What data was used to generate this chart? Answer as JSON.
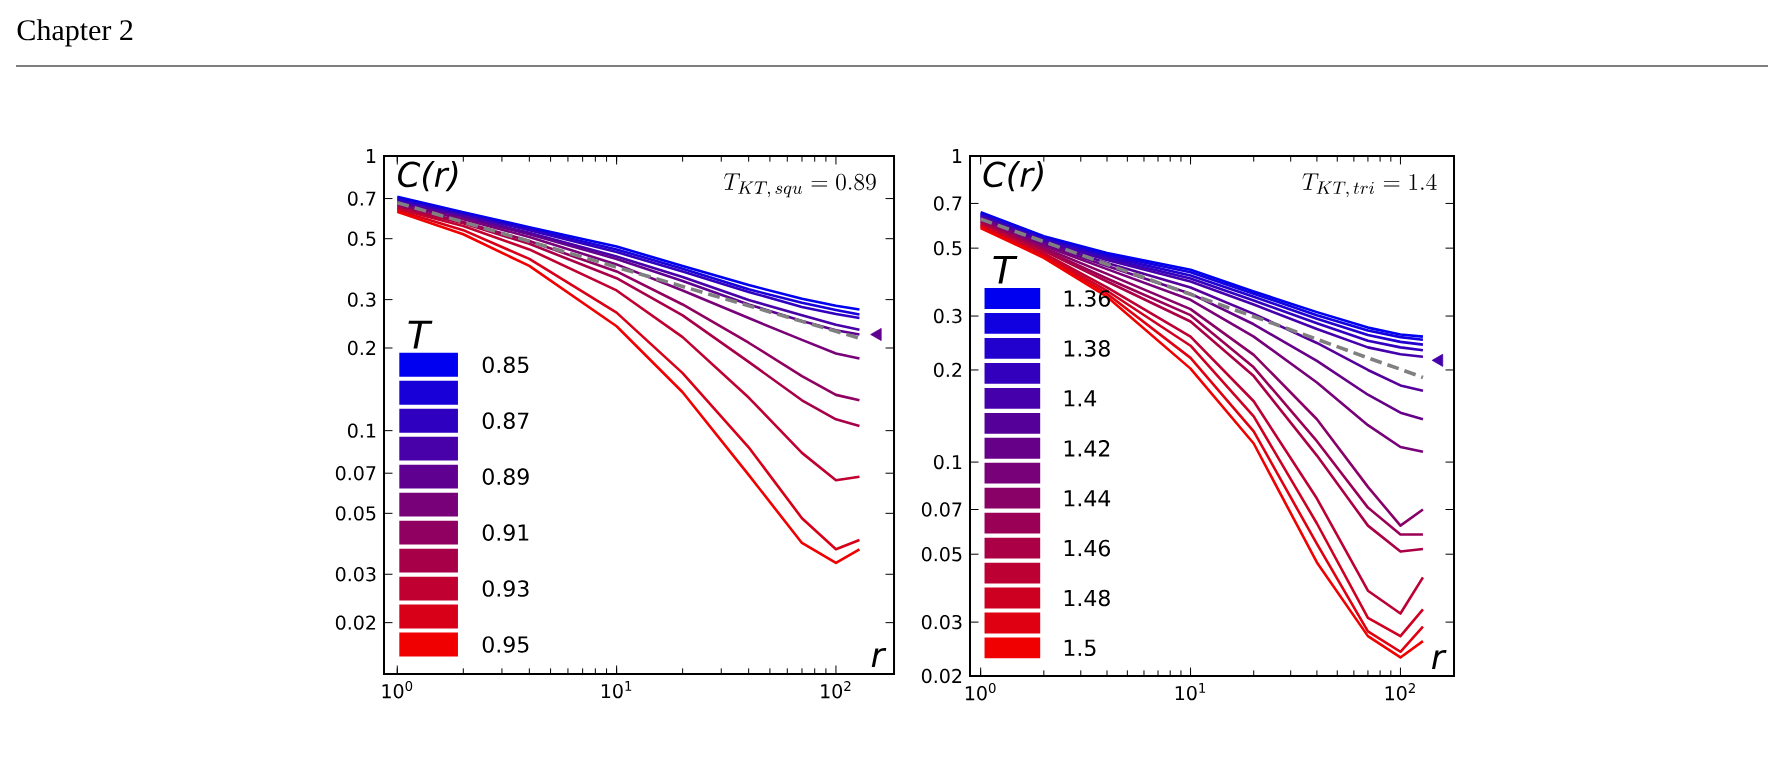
{
  "chart_data": [
    {
      "type": "line",
      "title": "T_{KT,\\,squ} = 0.89",
      "xlabel": "r",
      "ylabel": "C(r)",
      "legend_title": "T",
      "legend": "bottom left",
      "log": "xy",
      "annotations": [
        "Chapter 2"
      ],
      "x": [
        1,
        2,
        4,
        10,
        20,
        40,
        70,
        100,
        128
      ],
      "xlim": [
        0.87,
        184
      ],
      "ylim": [
        0.013,
        1
      ],
      "xticks": [
        {
          "value": 1,
          "label": "10$^{0}$"
        },
        {
          "value": 10,
          "label": "10$^{1}$"
        },
        {
          "value": 100,
          "label": "10$^{2}$"
        }
      ],
      "yticks": [
        0.02,
        0.03,
        0.05,
        0.07,
        0.1,
        0.2,
        0.3,
        0.5,
        0.7,
        1
      ],
      "series": [
        {
          "name": "0.85",
          "color": "#0000f0",
          "values": [
            0.71,
            0.624,
            0.55,
            0.468,
            0.398,
            0.339,
            0.302,
            0.285,
            0.276
          ]
        },
        {
          "color": "#1800d8",
          "values": [
            0.7,
            0.617,
            0.543,
            0.457,
            0.389,
            0.327,
            0.292,
            0.275,
            0.265
          ]
        },
        {
          "name": "0.87",
          "color": "#3000c0",
          "values": [
            0.69,
            0.61,
            0.537,
            0.447,
            0.38,
            0.32,
            0.282,
            0.266,
            0.257
          ]
        },
        {
          "color": "#4800a8",
          "values": [
            0.68,
            0.603,
            0.525,
            0.431,
            0.363,
            0.299,
            0.263,
            0.243,
            0.233
          ]
        },
        {
          "name": "0.89",
          "color": "#600090",
          "values": [
            0.67,
            0.596,
            0.519,
            0.422,
            0.351,
            0.288,
            0.251,
            0.232,
            0.224
          ]
        },
        {
          "color": "#780078",
          "values": [
            0.667,
            0.589,
            0.507,
            0.403,
            0.324,
            0.257,
            0.214,
            0.191,
            0.183
          ]
        },
        {
          "name": "0.91",
          "color": "#900060",
          "values": [
            0.658,
            0.575,
            0.49,
            0.38,
            0.288,
            0.209,
            0.158,
            0.135,
            0.129
          ]
        },
        {
          "color": "#a80048",
          "values": [
            0.65,
            0.569,
            0.479,
            0.359,
            0.263,
            0.178,
            0.129,
            0.11,
            0.104
          ]
        },
        {
          "name": "0.93",
          "color": "#c00030",
          "values": [
            0.643,
            0.556,
            0.457,
            0.324,
            0.219,
            0.132,
            0.083,
            0.066,
            0.068
          ]
        },
        {
          "color": "#d80018",
          "values": [
            0.634,
            0.537,
            0.422,
            0.269,
            0.162,
            0.087,
            0.048,
            0.037,
            0.04
          ]
        },
        {
          "name": "0.95",
          "color": "#f00000",
          "values": [
            0.627,
            0.519,
            0.398,
            0.24,
            0.138,
            0.069,
            0.039,
            0.033,
            0.037
          ]
        },
        {
          "color": "#808080",
          "line_style": "dashed",
          "values": [
            0.676,
            0.575,
            0.489,
            0.394,
            0.335,
            0.285,
            0.25,
            0.23,
            0.217
          ]
        },
        {
          "type": "scatter",
          "marker": "triangle",
          "color": "#600090",
          "x": [
            155
          ],
          "values": [
            0.224
          ]
        }
      ]
    },
    {
      "type": "line",
      "title": "T_{KT,\\,tri} = 1.4",
      "xlabel": "r",
      "ylabel": "C(r)",
      "legend_title": "T",
      "legend": "bottom left",
      "log": "xy",
      "x": [
        1,
        2,
        4,
        10,
        20,
        40,
        70,
        100,
        128
      ],
      "xlim": [
        0.89,
        180
      ],
      "ylim": [
        0.02,
        1
      ],
      "xticks": [
        {
          "value": 1,
          "label": "10$^{0}$"
        },
        {
          "value": 10,
          "label": "10$^{1}$"
        },
        {
          "value": 100,
          "label": "10$^{2}$"
        }
      ],
      "yticks": [
        0.02,
        0.03,
        0.05,
        0.07,
        0.1,
        0.2,
        0.3,
        0.5,
        0.7,
        1
      ],
      "series": [
        {
          "name": "1.36",
          "color": "#0000f0",
          "values": [
            0.655,
            0.547,
            0.482,
            0.425,
            0.361,
            0.309,
            0.275,
            0.261,
            0.257
          ]
        },
        {
          "color": "#1100df",
          "values": [
            0.649,
            0.542,
            0.476,
            0.417,
            0.355,
            0.302,
            0.269,
            0.256,
            0.251
          ]
        },
        {
          "name": "1.38",
          "color": "#2200ce",
          "values": [
            0.644,
            0.537,
            0.47,
            0.407,
            0.347,
            0.294,
            0.26,
            0.247,
            0.242
          ]
        },
        {
          "color": "#3300bd",
          "values": [
            0.638,
            0.532,
            0.463,
            0.398,
            0.337,
            0.284,
            0.249,
            0.237,
            0.232
          ]
        },
        {
          "name": "1.4",
          "color": "#4500ab",
          "values": [
            0.634,
            0.527,
            0.457,
            0.389,
            0.327,
            0.272,
            0.237,
            0.225,
            0.221
          ]
        },
        {
          "color": "#56009a",
          "values": [
            0.628,
            0.521,
            0.447,
            0.372,
            0.305,
            0.245,
            0.2,
            0.178,
            0.171
          ]
        },
        {
          "name": "1.42",
          "color": "#670089",
          "values": [
            0.624,
            0.515,
            0.437,
            0.355,
            0.282,
            0.214,
            0.166,
            0.145,
            0.138
          ]
        },
        {
          "color": "#780078",
          "values": [
            0.618,
            0.509,
            0.427,
            0.339,
            0.257,
            0.182,
            0.132,
            0.112,
            0.108
          ]
        },
        {
          "name": "1.44",
          "color": "#890067",
          "values": [
            0.612,
            0.501,
            0.412,
            0.316,
            0.224,
            0.138,
            0.083,
            0.062,
            0.07
          ]
        },
        {
          "color": "#9a0056",
          "values": [
            0.608,
            0.495,
            0.398,
            0.302,
            0.204,
            0.117,
            0.071,
            0.058,
            0.058
          ]
        },
        {
          "name": "1.46",
          "color": "#ab0045",
          "values": [
            0.603,
            0.49,
            0.389,
            0.288,
            0.191,
            0.105,
            0.062,
            0.051,
            0.052
          ]
        },
        {
          "color": "#bd0033",
          "values": [
            0.597,
            0.481,
            0.372,
            0.257,
            0.158,
            0.076,
            0.038,
            0.032,
            0.042
          ]
        },
        {
          "name": "1.48",
          "color": "#ce0022",
          "values": [
            0.593,
            0.475,
            0.363,
            0.24,
            0.141,
            0.063,
            0.031,
            0.027,
            0.033
          ]
        },
        {
          "color": "#df0011",
          "values": [
            0.587,
            0.47,
            0.355,
            0.219,
            0.126,
            0.054,
            0.028,
            0.024,
            0.029
          ]
        },
        {
          "name": "1.5",
          "color": "#f00000",
          "values": [
            0.582,
            0.465,
            0.347,
            0.202,
            0.115,
            0.047,
            0.027,
            0.023,
            0.026
          ]
        },
        {
          "color": "#808080",
          "line_style": "dashed",
          "values": [
            0.622,
            0.525,
            0.443,
            0.353,
            0.299,
            0.252,
            0.219,
            0.201,
            0.189
          ]
        },
        {
          "type": "scatter",
          "marker": "triangle",
          "color": "#4500ab",
          "x": [
            153
          ],
          "values": [
            0.215
          ]
        }
      ]
    }
  ]
}
